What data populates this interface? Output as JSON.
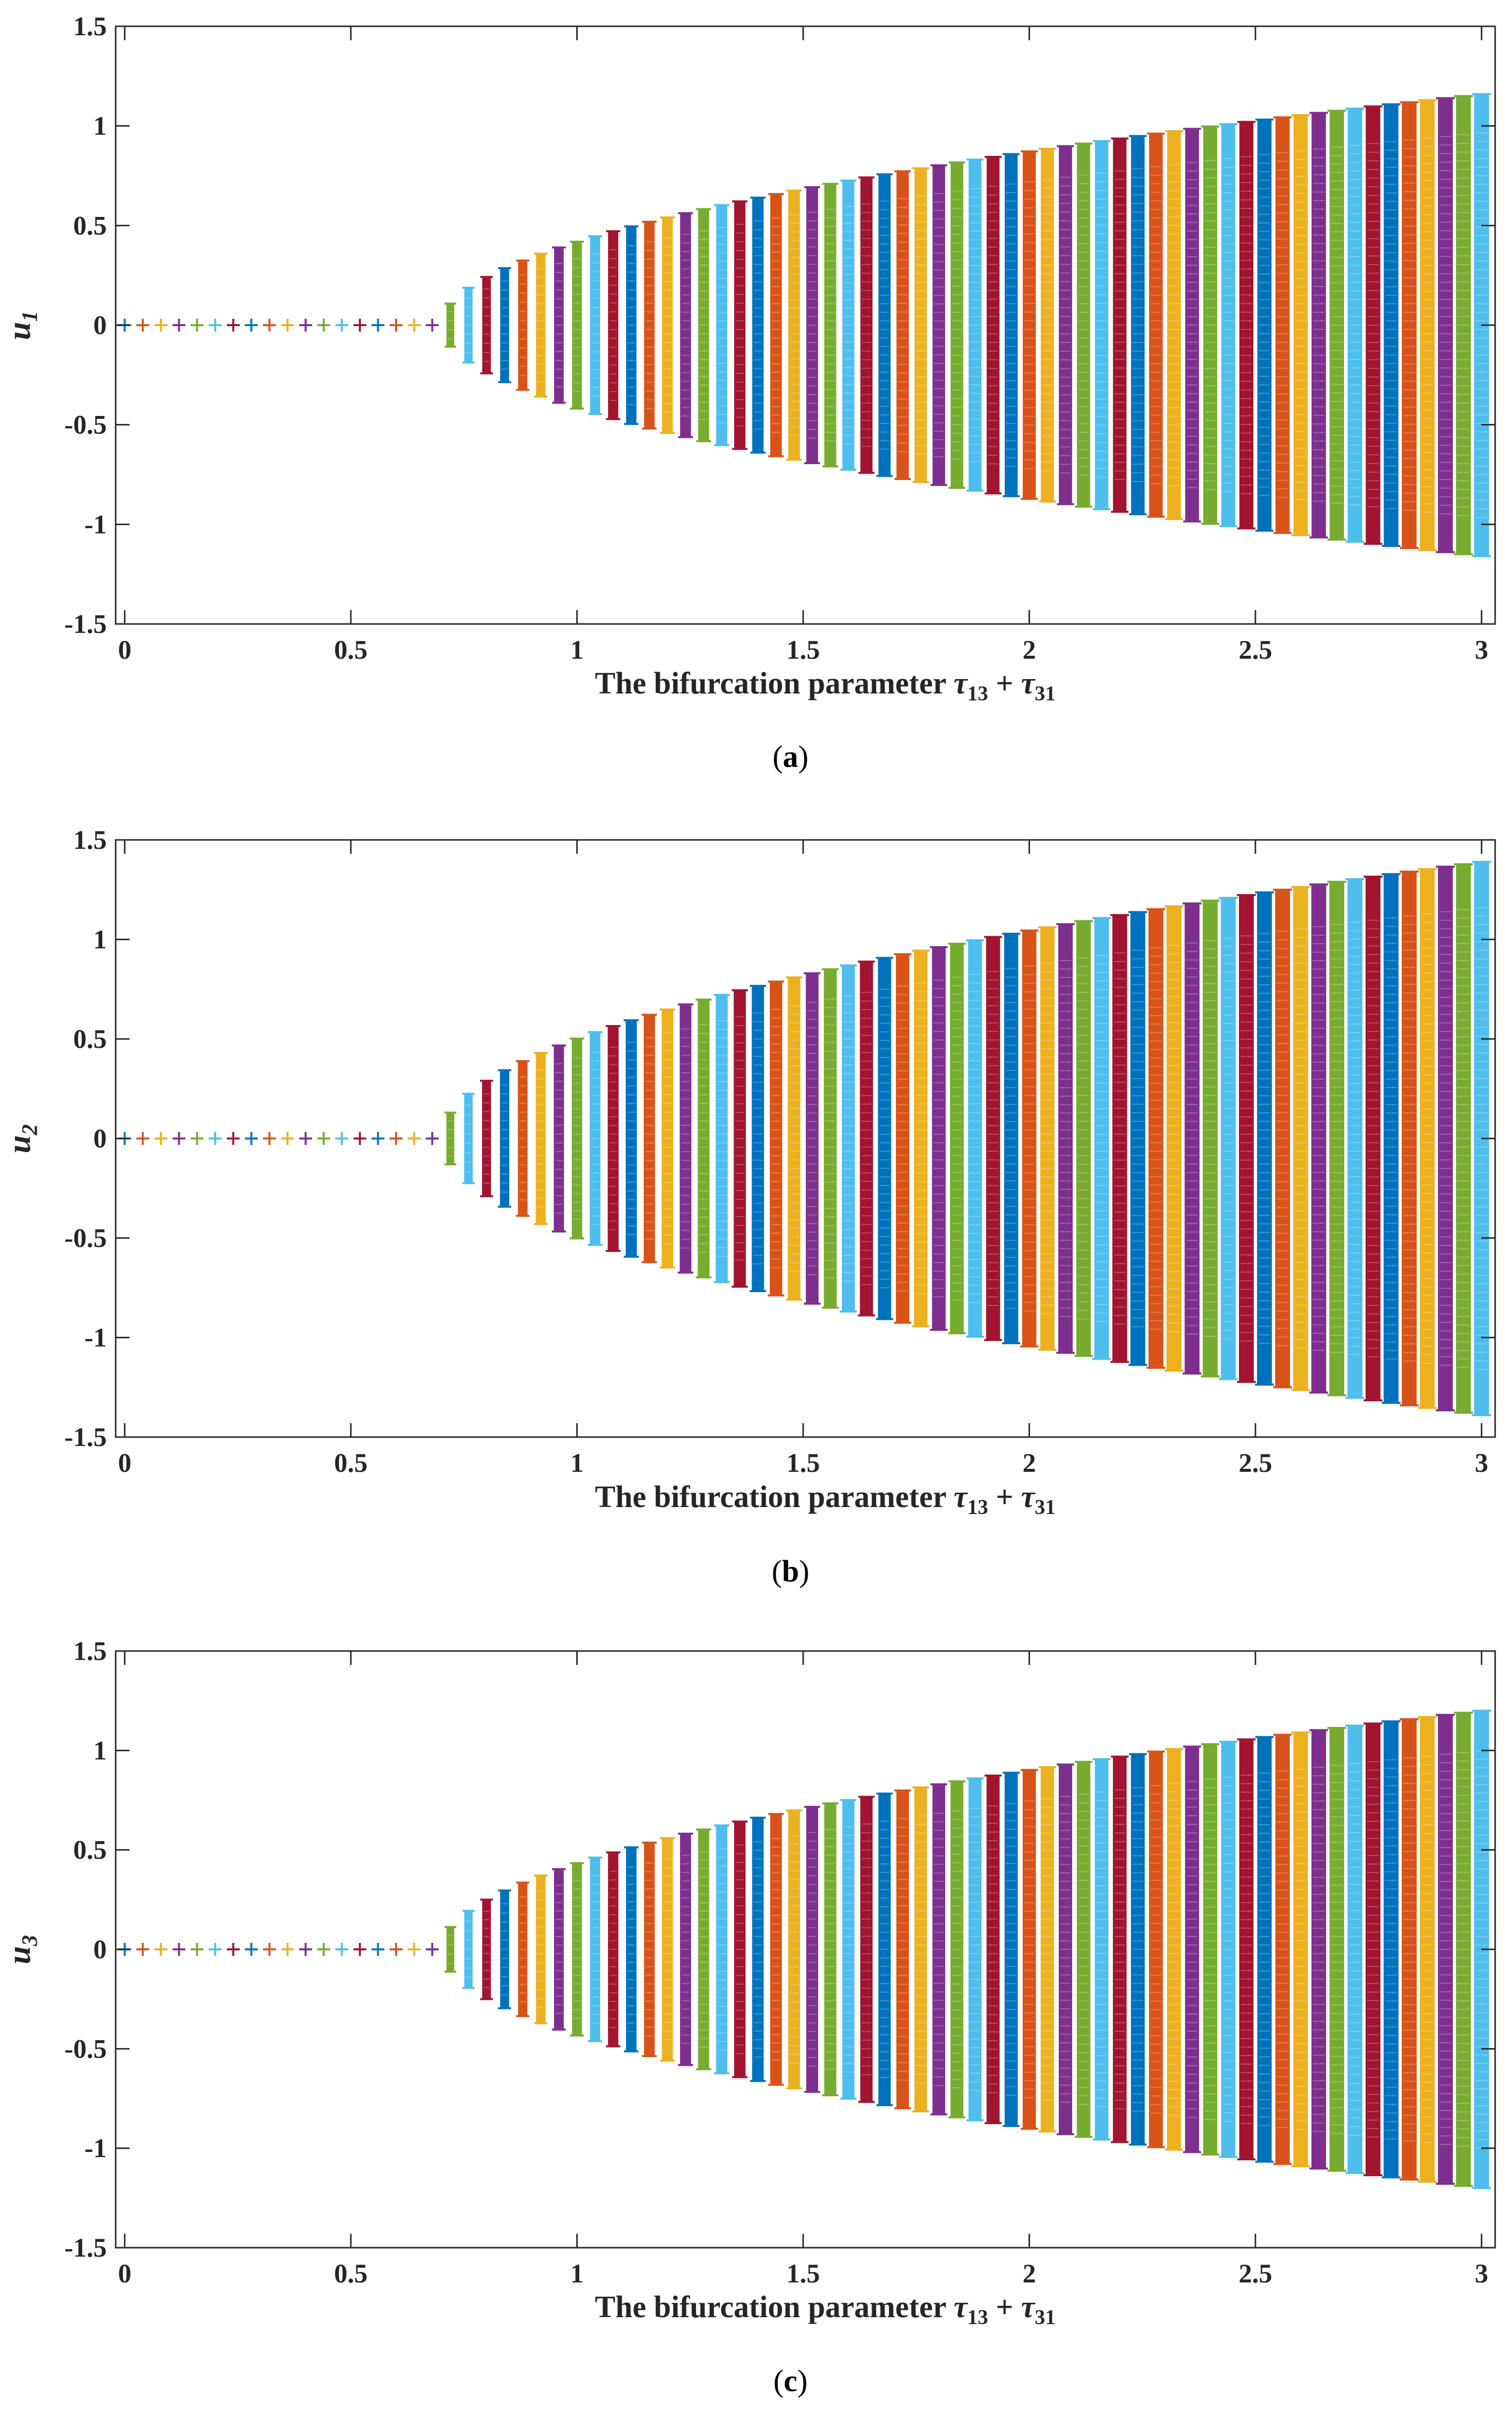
{
  "chart_data": [
    {
      "type": "scatter",
      "panel": "a",
      "caption_letter": "a",
      "ylabel_var": "u",
      "ylabel_sub": "1",
      "xlabel_text": "The bifurcation parameter ",
      "xlabel_math": "τ",
      "xlabel_sub1": "13",
      "xlabel_plus": " + ",
      "xlabel_sub2": "31",
      "xlim": [
        -0.02,
        3.03
      ],
      "ylim": [
        -1.5,
        1.5
      ],
      "xticks": [
        "0",
        "0.5",
        "1",
        "1.5",
        "2",
        "2.5",
        "3"
      ],
      "yticks": [
        "1.5",
        "1",
        "0.5",
        "0",
        "-0.5",
        "-1",
        "-1.5"
      ],
      "onset": 0.7,
      "amp_max": 1.16,
      "n_columns": 76,
      "x_start": 0.0,
      "x_step": 0.04
    },
    {
      "type": "scatter",
      "panel": "b",
      "caption_letter": "b",
      "ylabel_var": "u",
      "ylabel_sub": "2",
      "xlabel_text": "The bifurcation parameter ",
      "xlabel_math": "τ",
      "xlabel_sub1": "13",
      "xlabel_plus": " + ",
      "xlabel_sub2": "31",
      "xlim": [
        -0.02,
        3.03
      ],
      "ylim": [
        -1.5,
        1.5
      ],
      "xticks": [
        "0",
        "0.5",
        "1",
        "1.5",
        "2",
        "2.5",
        "3"
      ],
      "yticks": [
        "1.5",
        "1",
        "0.5",
        "0",
        "-0.5",
        "-1",
        "-1.5"
      ],
      "onset": 0.7,
      "amp_max": 1.39,
      "n_columns": 76,
      "x_start": 0.0,
      "x_step": 0.04
    },
    {
      "type": "scatter",
      "panel": "c",
      "caption_letter": "c",
      "ylabel_var": "u",
      "ylabel_sub": "3",
      "xlabel_text": "The bifurcation parameter ",
      "xlabel_math": "τ",
      "xlabel_sub1": "13",
      "xlabel_plus": " + ",
      "xlabel_sub2": "31",
      "xlim": [
        -0.02,
        3.03
      ],
      "ylim": [
        -1.5,
        1.5
      ],
      "xticks": [
        "0",
        "0.5",
        "1",
        "1.5",
        "2",
        "2.5",
        "3"
      ],
      "yticks": [
        "1.5",
        "1",
        "0.5",
        "0",
        "-0.5",
        "-1",
        "-1.5"
      ],
      "onset": 0.7,
      "amp_max": 1.2,
      "n_columns": 76,
      "x_start": 0.0,
      "x_step": 0.04
    }
  ],
  "colors": {
    "palette": [
      "#0072BD",
      "#D95319",
      "#EDB120",
      "#7E2F8E",
      "#77AC30",
      "#4DBEEE",
      "#A2142F"
    ],
    "axis": "#262626",
    "background": "#ffffff"
  }
}
